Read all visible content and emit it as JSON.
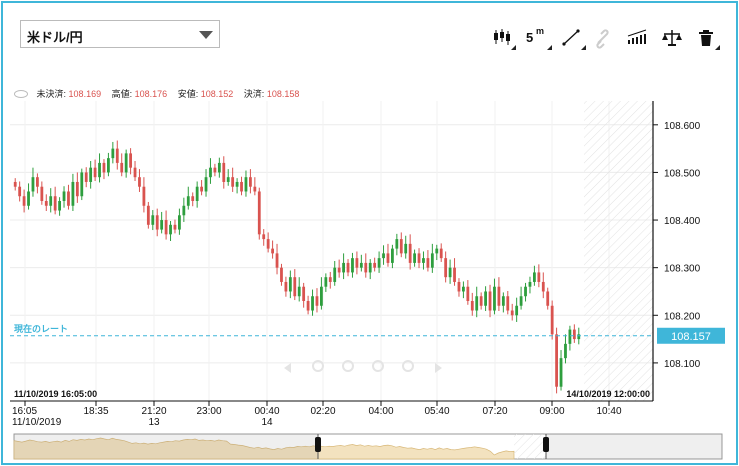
{
  "pair_selector": {
    "value": "米ドル/円"
  },
  "toolbar": {
    "timeframe_label": "5",
    "timeframe_unit": "m"
  },
  "stats": {
    "unsettled_label": "未決済:",
    "unsettled_value": "108.169",
    "high_label": "高値:",
    "high_value": "108.176",
    "low_label": "安値:",
    "low_value": "108.152",
    "close_label": "決済:",
    "close_value": "108.158"
  },
  "current_rate": {
    "label": "現在のレート",
    "value": "108.157"
  },
  "range_labels": {
    "start": "11/10/2019 16:05:00",
    "end": "14/10/2019 12:00:00"
  },
  "colors": {
    "up": "#2e9e3e",
    "down": "#d9534f",
    "accent": "#3fb6d9"
  },
  "chart_data": {
    "type": "candlestick",
    "y_ticks": [
      "108.600",
      "108.500",
      "108.400",
      "108.300",
      "108.200",
      "108.100"
    ],
    "ylim": [
      108.02,
      108.65
    ],
    "x_tick_labels": [
      "16:05",
      "18:35",
      "21:20",
      "23:00",
      "00:40",
      "02:20",
      "04:00",
      "05:40",
      "07:20",
      "09:00",
      "10:40"
    ],
    "x_sub_labels": [
      "11/10/2019",
      "",
      "13",
      "",
      "14",
      "",
      "",
      "",
      "",
      "",
      ""
    ],
    "current_price": 108.157,
    "candles_close": [
      108.47,
      108.45,
      108.43,
      108.46,
      108.49,
      108.47,
      108.44,
      108.43,
      108.45,
      108.42,
      108.44,
      108.46,
      108.43,
      108.48,
      108.45,
      108.5,
      108.48,
      108.51,
      108.49,
      108.52,
      108.5,
      108.53,
      108.55,
      108.52,
      108.5,
      108.54,
      108.51,
      108.49,
      108.47,
      108.43,
      108.39,
      108.41,
      108.38,
      108.4,
      108.37,
      108.39,
      108.38,
      108.41,
      108.43,
      108.45,
      108.44,
      108.47,
      108.46,
      108.49,
      108.51,
      108.5,
      108.52,
      108.48,
      108.49,
      108.47,
      108.48,
      108.46,
      108.49,
      108.47,
      108.46,
      108.37,
      108.36,
      108.34,
      108.33,
      108.3,
      108.27,
      108.25,
      108.28,
      108.24,
      108.26,
      108.23,
      108.21,
      108.24,
      108.22,
      108.26,
      108.28,
      108.27,
      108.3,
      108.29,
      108.31,
      108.29,
      108.32,
      108.3,
      108.31,
      108.29,
      108.31,
      108.3,
      108.32,
      108.33,
      108.31,
      108.34,
      108.36,
      108.33,
      108.35,
      108.31,
      108.33,
      108.31,
      108.32,
      108.3,
      108.33,
      108.34,
      108.32,
      108.28,
      108.3,
      108.27,
      108.25,
      108.26,
      108.23,
      108.21,
      108.24,
      108.22,
      108.25,
      108.21,
      108.26,
      108.22,
      108.24,
      108.21,
      108.2,
      108.22,
      108.24,
      108.26,
      108.27,
      108.29,
      108.27,
      108.25,
      108.22,
      108.16,
      108.05,
      108.11,
      108.14,
      108.17,
      108.15,
      108.16
    ]
  }
}
